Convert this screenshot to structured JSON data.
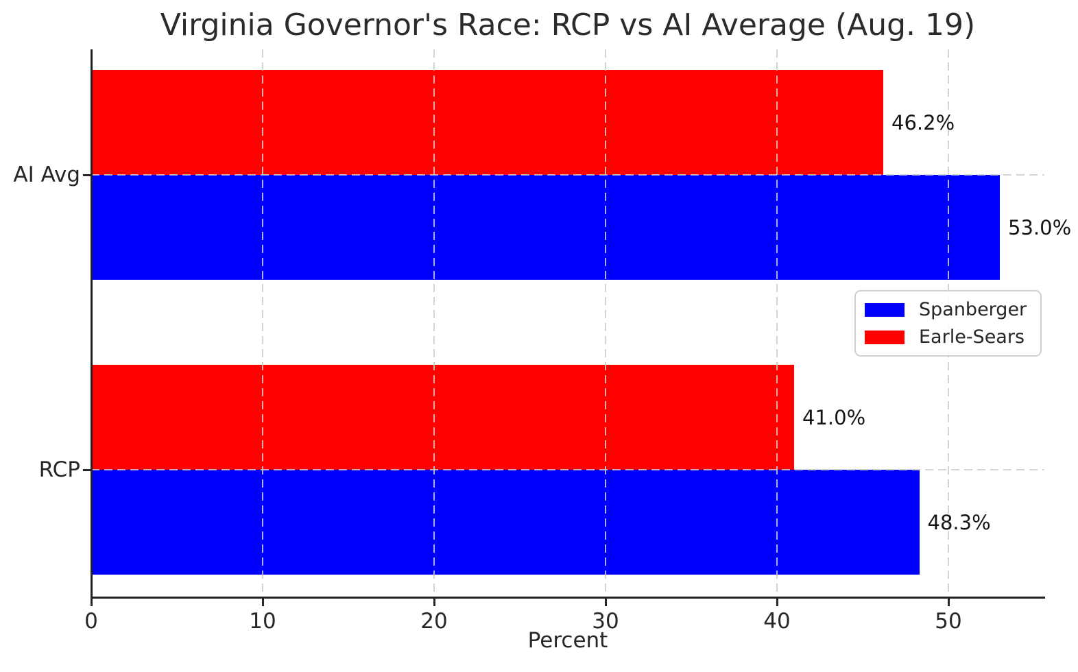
{
  "chart_data": {
    "type": "bar",
    "orientation": "horizontal",
    "title": "Virginia Governor's Race: RCP vs AI Average (Aug. 19)",
    "xlabel": "Percent",
    "categories": [
      "AI Avg",
      "RCP"
    ],
    "series": [
      {
        "name": "Spanberger",
        "color": "#0000ff",
        "values": [
          53.0,
          48.3
        ],
        "labels": [
          "53.0%",
          "48.3%"
        ]
      },
      {
        "name": "Earle-Sears",
        "color": "#ff0000",
        "values": [
          46.2,
          41.0
        ],
        "labels": [
          "46.2%",
          "41.0%"
        ]
      }
    ],
    "xlim": [
      0,
      55.6
    ],
    "xticks": [
      0,
      10,
      20,
      30,
      40,
      50
    ],
    "grid": true,
    "grid_style": "dashed",
    "legend_position": "center-right",
    "spines": [
      "left",
      "bottom"
    ]
  }
}
